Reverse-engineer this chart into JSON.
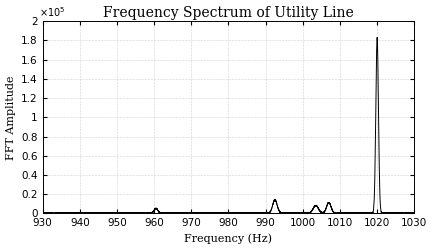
{
  "title": "Frequency Spectrum of Utility Line",
  "xlabel": "Frequency (Hz)",
  "ylabel": "FFT Amplitude",
  "xlim": [
    930,
    1030
  ],
  "ylim": [
    0,
    200000.0
  ],
  "ytick_vals": [
    0,
    20000,
    40000,
    60000,
    80000,
    100000,
    120000,
    140000,
    160000,
    180000,
    200000
  ],
  "ytick_labels": [
    "0",
    "0.2",
    "0.4",
    "0.6",
    "0.8",
    "1",
    "1.2",
    "1.4",
    "1.6",
    "1.8",
    "2"
  ],
  "xticks": [
    930,
    940,
    950,
    960,
    970,
    980,
    990,
    1000,
    1010,
    1020,
    1030
  ],
  "peaks": [
    {
      "freq": 960.5,
      "amp": 5000,
      "sigma": 0.5
    },
    {
      "freq": 992.5,
      "amp": 14000,
      "sigma": 0.6
    },
    {
      "freq": 1003.5,
      "amp": 8000,
      "sigma": 0.7
    },
    {
      "freq": 1007.0,
      "amp": 11000,
      "sigma": 0.6
    },
    {
      "freq": 1020.0,
      "amp": 183000,
      "sigma": 0.35
    }
  ],
  "noise_level": 300,
  "background_color": "#ffffff",
  "plot_bg_color": "#ffffff",
  "line_color": "#000000",
  "grid_color": "#aaaaaa",
  "title_fontsize": 10,
  "label_fontsize": 8,
  "tick_fontsize": 7.5
}
